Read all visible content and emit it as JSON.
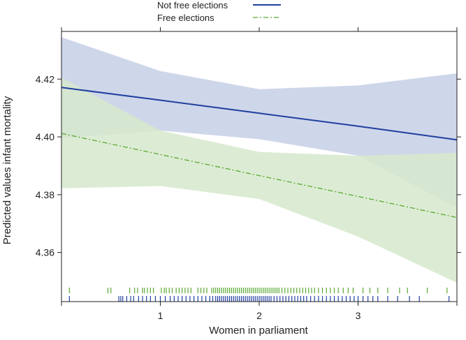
{
  "chart_data": {
    "type": "line",
    "title": "",
    "xlabel": "Women in parliament",
    "ylabel": "Predicted values infant mortality",
    "xlim": [
      0,
      4
    ],
    "ylim": [
      4.343,
      4.4365
    ],
    "x_ticks": [
      1,
      2,
      3
    ],
    "x_tick_labels": [
      "1",
      "2",
      "3"
    ],
    "y_ticks": [
      4.36,
      4.38,
      4.4,
      4.42
    ],
    "y_tick_labels": [
      "4.36",
      "4.38",
      "4.40",
      "4.42"
    ],
    "grid": false,
    "legend_position": "top",
    "series": [
      {
        "name": "Not free elections",
        "color": "#1f3f9e",
        "band_color": "#c5cfe6",
        "line_style": "solid",
        "x": [
          0,
          1,
          2,
          3,
          4
        ],
        "y": [
          4.4171,
          4.4127,
          4.4082,
          4.4037,
          4.399
        ],
        "lower": [
          4.3995,
          4.4022,
          4.3992,
          4.3935,
          4.3755
        ],
        "upper": [
          4.4345,
          4.4228,
          4.4165,
          4.4178,
          4.422
        ]
      },
      {
        "name": "Free elections",
        "color": "#5aa832",
        "band_color": "#d6e9cd",
        "line_style": "dashdot",
        "x": [
          0,
          1,
          2,
          3,
          4
        ],
        "y": [
          4.4012,
          4.3939,
          4.3866,
          4.3794,
          4.3721
        ],
        "lower": [
          4.3822,
          4.383,
          4.3785,
          4.3655,
          4.3495
        ],
        "upper": [
          4.4205,
          4.4022,
          4.3948,
          4.3935,
          4.3945
        ]
      }
    ],
    "rug": {
      "Free elections": [
        0.08,
        0.47,
        0.5,
        0.69,
        0.74,
        0.77,
        0.82,
        0.84,
        0.87,
        0.9,
        0.93,
        1.01,
        1.04,
        1.06,
        1.09,
        1.12,
        1.16,
        1.19,
        1.22,
        1.25,
        1.28,
        1.31,
        1.38,
        1.41,
        1.44,
        1.47,
        1.52,
        1.54,
        1.56,
        1.58,
        1.6,
        1.62,
        1.64,
        1.66,
        1.68,
        1.7,
        1.72,
        1.74,
        1.76,
        1.78,
        1.8,
        1.82,
        1.84,
        1.86,
        1.88,
        1.9,
        1.92,
        1.94,
        1.96,
        1.98,
        2.0,
        2.02,
        2.04,
        2.06,
        2.08,
        2.1,
        2.12,
        2.14,
        2.16,
        2.18,
        2.2,
        2.23,
        2.26,
        2.29,
        2.32,
        2.35,
        2.38,
        2.41,
        2.44,
        2.47,
        2.5,
        2.53,
        2.56,
        2.6,
        2.64,
        2.68,
        2.72,
        2.76,
        2.8,
        2.85,
        2.9,
        2.95,
        3.05,
        3.12,
        3.2,
        3.3,
        3.42,
        3.5,
        3.7,
        3.9
      ],
      "Not free elections": [
        0.08,
        0.58,
        0.6,
        0.62,
        0.66,
        0.7,
        0.73,
        0.78,
        0.82,
        0.86,
        0.9,
        0.95,
        1.0,
        1.05,
        1.1,
        1.14,
        1.18,
        1.22,
        1.26,
        1.3,
        1.34,
        1.38,
        1.42,
        1.46,
        1.5,
        1.53,
        1.56,
        1.58,
        1.6,
        1.62,
        1.64,
        1.66,
        1.68,
        1.7,
        1.72,
        1.74,
        1.76,
        1.78,
        1.8,
        1.82,
        1.84,
        1.86,
        1.88,
        1.9,
        1.92,
        1.94,
        1.96,
        1.98,
        2.0,
        2.02,
        2.04,
        2.06,
        2.08,
        2.1,
        2.12,
        2.15,
        2.18,
        2.21,
        2.24,
        2.27,
        2.3,
        2.33,
        2.36,
        2.39,
        2.42,
        2.45,
        2.48,
        2.52,
        2.56,
        2.6,
        2.64,
        2.68,
        2.72,
        2.76,
        2.8,
        2.84,
        2.88,
        2.92,
        2.96,
        3.0,
        3.05,
        3.1,
        3.15,
        3.2,
        3.3,
        3.4,
        3.52,
        3.62,
        3.92
      ]
    }
  }
}
